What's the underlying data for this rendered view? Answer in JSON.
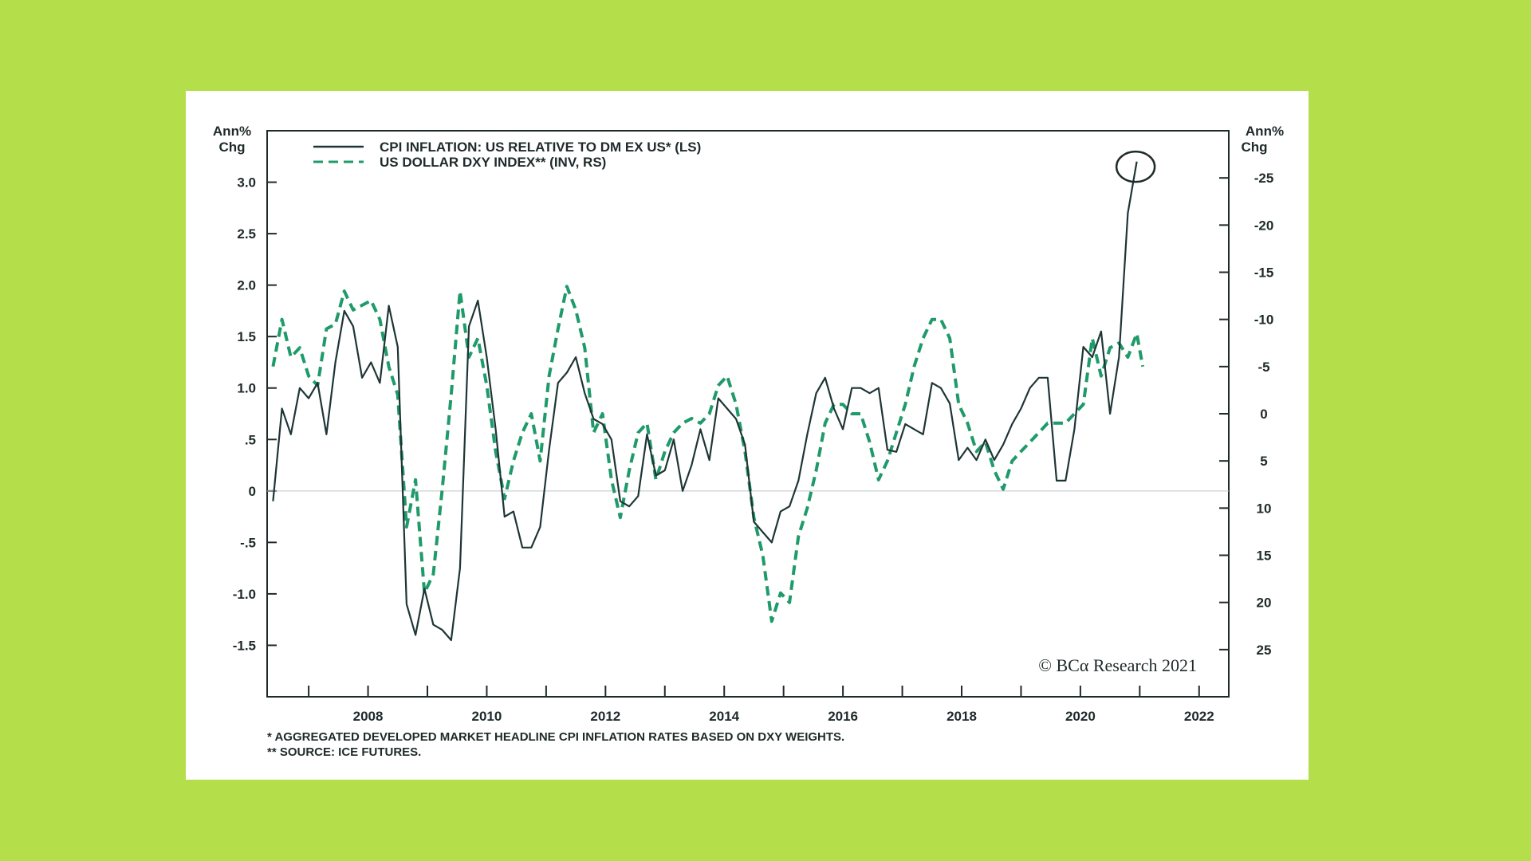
{
  "chart_data": {
    "type": "line",
    "left_axis": {
      "unit_line1": "Ann%",
      "unit_line2": "Chg",
      "ylim": [
        -2.0,
        3.5
      ],
      "ticks": [
        {
          "v": 3.0,
          "label": "3.0"
        },
        {
          "v": 2.5,
          "label": "2.5"
        },
        {
          "v": 2.0,
          "label": "2.0"
        },
        {
          "v": 1.5,
          "label": "1.5"
        },
        {
          "v": 1.0,
          "label": "1.0"
        },
        {
          "v": 0.5,
          "label": ".5"
        },
        {
          "v": 0,
          "label": "0"
        },
        {
          "v": -0.5,
          "label": "-.5"
        },
        {
          "v": -1.0,
          "label": "-1.0"
        },
        {
          "v": -1.5,
          "label": "-1.5"
        }
      ]
    },
    "right_axis": {
      "unit_line1": "Ann%",
      "unit_line2": "Chg",
      "inverted": true,
      "ylim": [
        -30,
        30
      ],
      "ticks": [
        {
          "v": -25,
          "label": "-25"
        },
        {
          "v": -20,
          "label": "-20"
        },
        {
          "v": -15,
          "label": "-15"
        },
        {
          "v": -10,
          "label": "-10"
        },
        {
          "v": -5,
          "label": "-5"
        },
        {
          "v": 0,
          "label": "0"
        },
        {
          "v": 5,
          "label": "5"
        },
        {
          "v": 10,
          "label": "10"
        },
        {
          "v": 15,
          "label": "15"
        },
        {
          "v": 20,
          "label": "20"
        },
        {
          "v": 25,
          "label": "25"
        }
      ]
    },
    "xlim": [
      2006.3,
      2022.5
    ],
    "x_ticks": [
      2008,
      2010,
      2012,
      2014,
      2016,
      2018,
      2020,
      2022
    ],
    "grid": false,
    "legend_position": "top-left",
    "series": [
      {
        "name": "CPI INFLATION: US RELATIVE TO DM EX US* (LS)",
        "axis": "left",
        "style": "solid",
        "color": "#1f3535",
        "x": [
          2006.4,
          2006.55,
          2006.7,
          2006.85,
          2007.0,
          2007.15,
          2007.3,
          2007.45,
          2007.6,
          2007.75,
          2007.9,
          2008.05,
          2008.2,
          2008.35,
          2008.5,
          2008.65,
          2008.8,
          2008.95,
          2009.1,
          2009.25,
          2009.4,
          2009.55,
          2009.7,
          2009.85,
          2010.0,
          2010.15,
          2010.3,
          2010.45,
          2010.6,
          2010.75,
          2010.9,
          2011.05,
          2011.2,
          2011.35,
          2011.5,
          2011.65,
          2011.8,
          2011.95,
          2012.1,
          2012.25,
          2012.4,
          2012.55,
          2012.7,
          2012.85,
          2013.0,
          2013.15,
          2013.3,
          2013.45,
          2013.6,
          2013.75,
          2013.9,
          2014.05,
          2014.2,
          2014.35,
          2014.5,
          2014.65,
          2014.8,
          2014.95,
          2015.1,
          2015.25,
          2015.4,
          2015.55,
          2015.7,
          2015.85,
          2016.0,
          2016.15,
          2016.3,
          2016.45,
          2016.6,
          2016.75,
          2016.9,
          2017.05,
          2017.2,
          2017.35,
          2017.5,
          2017.65,
          2017.8,
          2017.95,
          2018.1,
          2018.25,
          2018.4,
          2018.55,
          2018.7,
          2018.85,
          2019.0,
          2019.15,
          2019.3,
          2019.45,
          2019.6,
          2019.75,
          2019.9,
          2020.05,
          2020.2,
          2020.35,
          2020.5,
          2020.65,
          2020.8,
          2020.95
        ],
        "y": [
          -0.1,
          0.8,
          0.55,
          1.0,
          0.9,
          1.05,
          0.55,
          1.25,
          1.75,
          1.6,
          1.1,
          1.25,
          1.05,
          1.8,
          1.4,
          -1.1,
          -1.4,
          -0.95,
          -1.3,
          -1.35,
          -1.45,
          -0.75,
          1.6,
          1.85,
          1.3,
          0.6,
          -0.25,
          -0.2,
          -0.55,
          -0.55,
          -0.35,
          0.4,
          1.05,
          1.15,
          1.3,
          0.95,
          0.7,
          0.65,
          0.5,
          -0.1,
          -0.15,
          -0.05,
          0.55,
          0.15,
          0.2,
          0.5,
          0.0,
          0.25,
          0.6,
          0.3,
          0.9,
          0.8,
          0.7,
          0.45,
          -0.3,
          -0.4,
          -0.5,
          -0.2,
          -0.15,
          0.1,
          0.55,
          0.95,
          1.1,
          0.8,
          0.6,
          1.0,
          1.0,
          0.95,
          1.0,
          0.4,
          0.38,
          0.65,
          0.6,
          0.55,
          1.05,
          1.0,
          0.85,
          0.3,
          0.42,
          0.3,
          0.5,
          0.3,
          0.45,
          0.65,
          0.8,
          1.0,
          1.1,
          1.1,
          0.1,
          0.1,
          0.6,
          1.4,
          1.3,
          1.55,
          0.75,
          1.3,
          2.7,
          3.2
        ]
      },
      {
        "name": "US DOLLAR DXY INDEX** (INV, RS)",
        "axis": "right",
        "style": "dashed",
        "color": "#1f9a6a",
        "x": [
          2006.4,
          2006.55,
          2006.7,
          2006.85,
          2007.0,
          2007.15,
          2007.3,
          2007.45,
          2007.6,
          2007.75,
          2007.9,
          2008.05,
          2008.2,
          2008.35,
          2008.5,
          2008.65,
          2008.8,
          2008.95,
          2009.1,
          2009.25,
          2009.4,
          2009.55,
          2009.7,
          2009.85,
          2010.0,
          2010.15,
          2010.3,
          2010.45,
          2010.6,
          2010.75,
          2010.9,
          2011.05,
          2011.2,
          2011.35,
          2011.5,
          2011.65,
          2011.8,
          2011.95,
          2012.1,
          2012.25,
          2012.4,
          2012.55,
          2012.7,
          2012.85,
          2013.0,
          2013.15,
          2013.3,
          2013.45,
          2013.6,
          2013.75,
          2013.9,
          2014.05,
          2014.2,
          2014.35,
          2014.5,
          2014.65,
          2014.8,
          2014.95,
          2015.1,
          2015.25,
          2015.4,
          2015.55,
          2015.7,
          2015.85,
          2016.0,
          2016.15,
          2016.3,
          2016.45,
          2016.6,
          2016.75,
          2016.9,
          2017.05,
          2017.2,
          2017.35,
          2017.5,
          2017.65,
          2017.8,
          2017.95,
          2018.1,
          2018.25,
          2018.4,
          2018.55,
          2018.7,
          2018.85,
          2019.0,
          2019.15,
          2019.3,
          2019.45,
          2019.6,
          2019.75,
          2019.9,
          2020.05,
          2020.2,
          2020.35,
          2020.5,
          2020.65,
          2020.8,
          2020.95,
          2021.05
        ],
        "y": [
          -5,
          -10,
          -6,
          -7,
          -4,
          -3,
          -9,
          -9.5,
          -13,
          -11,
          -11.5,
          -12,
          -10,
          -5,
          -2,
          12,
          7,
          19,
          17,
          8,
          -2,
          -13,
          -6,
          -8,
          -3,
          4,
          9,
          5,
          2,
          0,
          5,
          -4,
          -9,
          -13.5,
          -11,
          -7,
          2,
          0,
          7,
          11,
          6,
          2,
          1,
          7,
          4,
          2,
          1,
          0.5,
          1,
          0,
          -3,
          -4,
          -1,
          4,
          11,
          15,
          22,
          19,
          20,
          13,
          10,
          6,
          1,
          -1,
          -1,
          0,
          0,
          3,
          7,
          5,
          2,
          -1,
          -5,
          -8,
          -10,
          -10,
          -8,
          -1,
          1,
          4,
          3,
          6,
          8,
          5,
          4,
          3,
          2,
          1,
          1,
          1,
          0,
          -1,
          -8,
          -4,
          -7,
          -7.5,
          -6,
          -8.5,
          -5
        ]
      }
    ],
    "credit": "© BCα Research 2021",
    "footnotes": [
      "* AGGREGATED DEVELOPED MARKET HEADLINE CPI INFLATION RATES BASED ON DXY WEIGHTS.",
      "** SOURCE: ICE FUTURES."
    ],
    "annotation": {
      "type": "circle",
      "x": 2020.93,
      "y_left": 3.15
    }
  }
}
